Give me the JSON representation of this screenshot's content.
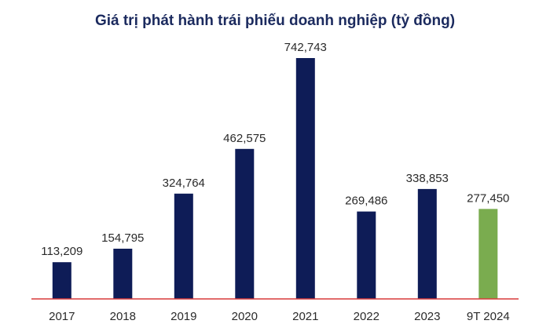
{
  "chart_data": {
    "type": "bar",
    "title": "Giá trị phát hành trái phiếu doanh nghiệp (tỷ đồng)",
    "xlabel": "",
    "ylabel": "",
    "ylim": [
      0,
      800000
    ],
    "grid": false,
    "categories": [
      "2017",
      "2018",
      "2019",
      "2020",
      "2021",
      "2022",
      "2023",
      "9T 2024"
    ],
    "values": [
      113209,
      154795,
      324764,
      462575,
      742743,
      269486,
      338853,
      277450
    ],
    "value_labels": [
      "113,209",
      "154,795",
      "324,764",
      "462,575",
      "742,743",
      "269,486",
      "338,853",
      "277,450"
    ],
    "colors": {
      "bar": "#0e1c57",
      "highlight_bar": "#7aac4f",
      "baseline": "#d93a3a",
      "title": "#1b2a5e",
      "text": "#2a2a2a"
    },
    "highlight_index": 7
  }
}
